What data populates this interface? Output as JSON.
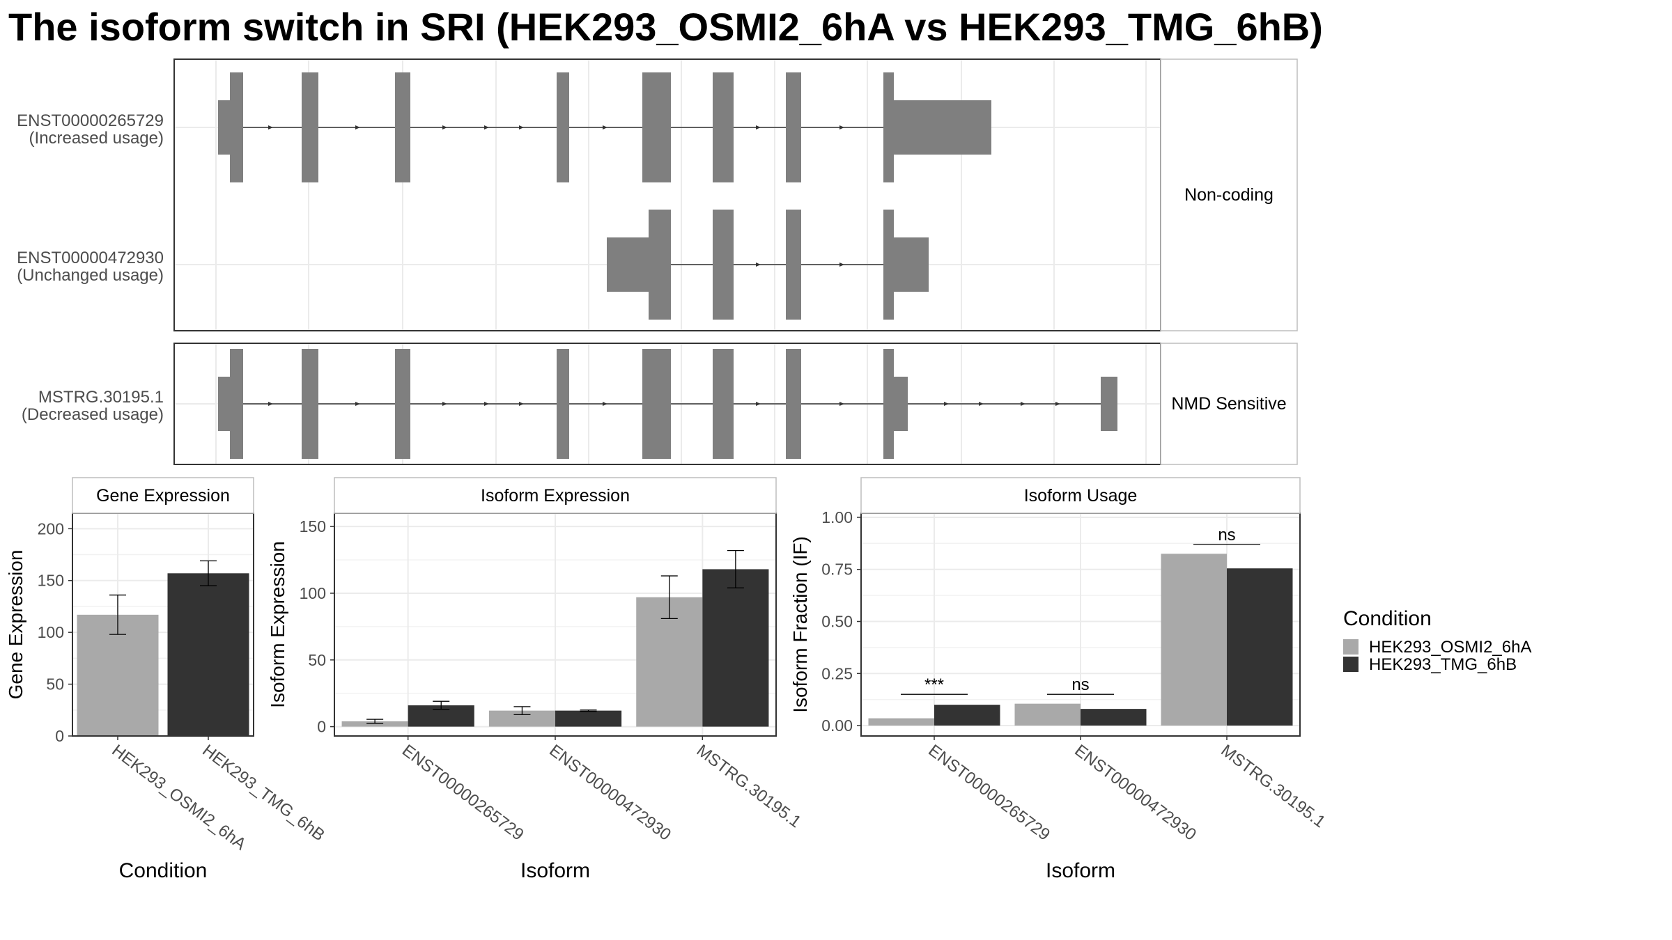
{
  "title": "The isoform switch in SRI (HEK293_OSMI2_6hA vs HEK293_TMG_6hB)",
  "colors": {
    "exon": "#7f7f7f",
    "cond_a": "#a9a9a9",
    "cond_b": "#333333",
    "panel_border": "#333333",
    "strip_border": "#bdbdbd",
    "grid": "#ebebeb",
    "axis_text": "#4d4d4d"
  },
  "transcript_panels": [
    {
      "strip_label": "Non-coding",
      "tracks": [
        {
          "id": "ENST00000265729",
          "usage": "(Increased usage)"
        },
        {
          "id": "ENST00000472930",
          "usage": "(Unchanged usage)"
        }
      ]
    },
    {
      "strip_label": "NMD Sensitive",
      "tracks": [
        {
          "id": "MSTRG.30195.1",
          "usage": "(Decreased usage)"
        }
      ]
    }
  ],
  "chart_data": [
    {
      "type": "bar",
      "title": "Gene Expression",
      "xlabel": "Condition",
      "ylabel": "Gene Expression",
      "ylim": [
        0,
        215
      ],
      "yticks": [
        0,
        50,
        100,
        150,
        200
      ],
      "categories": [
        "HEK293_OSMI2_6hA",
        "HEK293_TMG_6hB"
      ],
      "series": [
        {
          "name": "HEK293_OSMI2_6hA",
          "values": [
            117,
            null
          ],
          "error": [
            19,
            null
          ]
        },
        {
          "name": "HEK293_TMG_6hB",
          "values": [
            null,
            157
          ],
          "error": [
            null,
            12
          ]
        }
      ],
      "grid": true
    },
    {
      "type": "bar",
      "title": "Isoform Expression",
      "xlabel": "Isoform",
      "ylabel": "Isoform Expression",
      "ylim": [
        -7,
        160
      ],
      "yticks": [
        0,
        50,
        100,
        150
      ],
      "categories": [
        "ENST00000265729",
        "ENST00000472930",
        "MSTRG.30195.1"
      ],
      "series": [
        {
          "name": "HEK293_OSMI2_6hA",
          "values": [
            4,
            12,
            97
          ],
          "error": [
            1.5,
            3,
            16
          ]
        },
        {
          "name": "HEK293_TMG_6hB",
          "values": [
            16,
            12,
            118
          ],
          "error": [
            3,
            0.5,
            14
          ]
        }
      ],
      "grid": true
    },
    {
      "type": "bar",
      "title": "Isoform Usage",
      "xlabel": "Isoform",
      "ylabel": "Isoform Fraction (IF)",
      "ylim": [
        -0.05,
        1.02
      ],
      "yticks": [
        "0.00",
        "0.25",
        "0.50",
        "0.75",
        "1.00"
      ],
      "categories": [
        "ENST00000265729",
        "ENST00000472930",
        "MSTRG.30195.1"
      ],
      "series": [
        {
          "name": "HEK293_OSMI2_6hA",
          "values": [
            0.035,
            0.105,
            0.825
          ]
        },
        {
          "name": "HEK293_TMG_6hB",
          "values": [
            0.1,
            0.08,
            0.755
          ]
        }
      ],
      "annotations": [
        {
          "category": "ENST00000265729",
          "label": "***",
          "y": 0.15
        },
        {
          "category": "ENST00000472930",
          "label": "ns",
          "y": 0.15
        },
        {
          "category": "MSTRG.30195.1",
          "label": "ns",
          "y": 0.87
        }
      ],
      "grid": true
    }
  ],
  "legend": {
    "title": "Condition",
    "position": "right",
    "entries": [
      "HEK293_OSMI2_6hA",
      "HEK293_TMG_6hB"
    ]
  }
}
